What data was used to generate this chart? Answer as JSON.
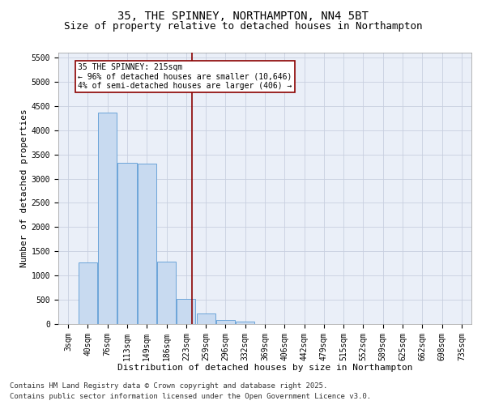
{
  "title": "35, THE SPINNEY, NORTHAMPTON, NN4 5BT",
  "subtitle": "Size of property relative to detached houses in Northampton",
  "xlabel": "Distribution of detached houses by size in Northampton",
  "ylabel": "Number of detached properties",
  "categories": [
    "3sqm",
    "40sqm",
    "76sqm",
    "113sqm",
    "149sqm",
    "186sqm",
    "223sqm",
    "259sqm",
    "296sqm",
    "332sqm",
    "369sqm",
    "406sqm",
    "442sqm",
    "479sqm",
    "515sqm",
    "552sqm",
    "589sqm",
    "625sqm",
    "662sqm",
    "698sqm",
    "735sqm"
  ],
  "bar_heights": [
    0,
    1270,
    4360,
    3320,
    3310,
    1285,
    510,
    215,
    85,
    55,
    0,
    0,
    0,
    0,
    0,
    0,
    0,
    0,
    0,
    0,
    0
  ],
  "bar_color": "#c8daf0",
  "bar_edge_color": "#5b9bd5",
  "grid_color": "#c8cfe0",
  "background_color": "#eaeff8",
  "vline_x_index": 6.3,
  "vline_color": "#8b0000",
  "annotation_text_line1": "35 THE SPINNEY: 215sqm",
  "annotation_text_line2": "← 96% of detached houses are smaller (10,646)",
  "annotation_text_line3": "4% of semi-detached houses are larger (406) →",
  "ylim": [
    0,
    5600
  ],
  "yticks": [
    0,
    500,
    1000,
    1500,
    2000,
    2500,
    3000,
    3500,
    4000,
    4500,
    5000,
    5500
  ],
  "footer_line1": "Contains HM Land Registry data © Crown copyright and database right 2025.",
  "footer_line2": "Contains public sector information licensed under the Open Government Licence v3.0.",
  "title_fontsize": 10,
  "subtitle_fontsize": 9,
  "axis_label_fontsize": 8,
  "tick_fontsize": 7,
  "annotation_fontsize": 7,
  "footer_fontsize": 6.5
}
